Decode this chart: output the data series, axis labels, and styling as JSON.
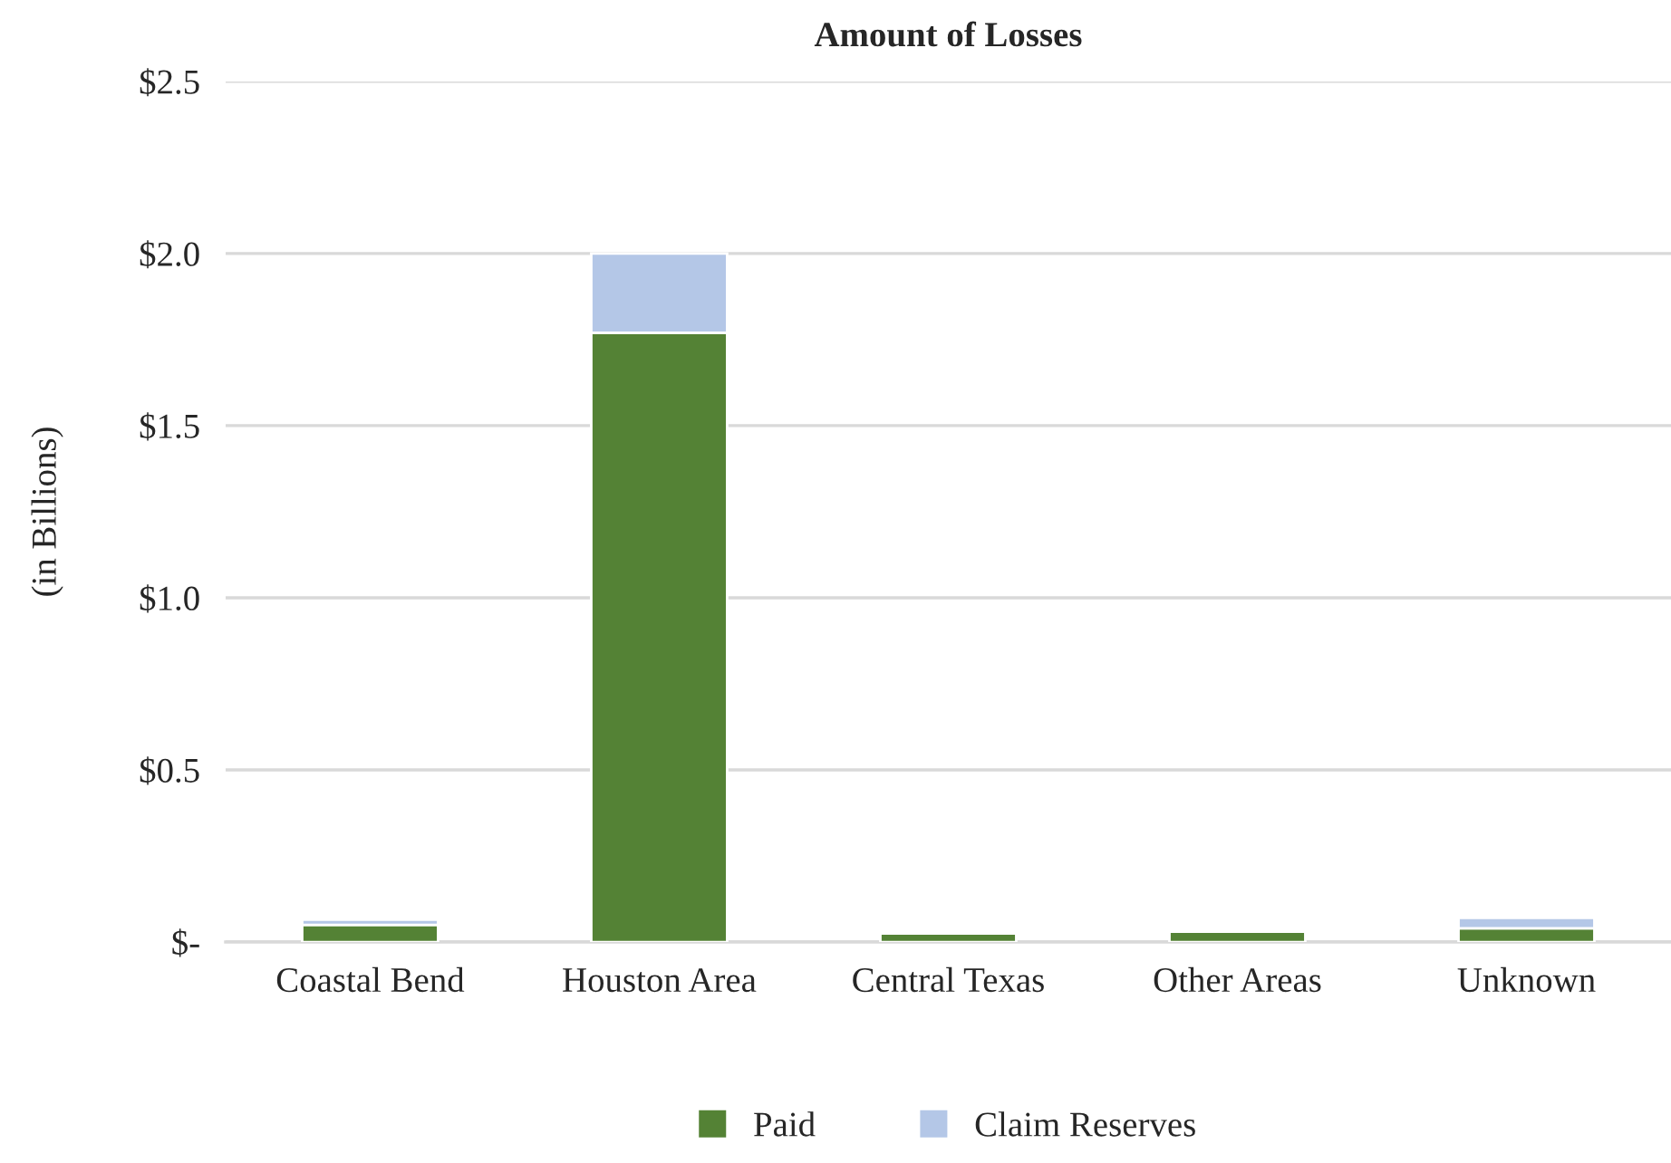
{
  "chart_data": {
    "type": "bar",
    "title": "Amount of Losses",
    "ylabel": "(in Billions)",
    "categories": [
      "Coastal Bend",
      "Houston Area",
      "Central Texas",
      "Other Areas",
      "Unknown"
    ],
    "stacked": true,
    "series": [
      {
        "name": "Paid",
        "color": "#548235",
        "values": [
          0.05,
          1.77,
          0.025,
          0.03,
          0.04
        ]
      },
      {
        "name": "Claim Reserves",
        "color": "#b4c7e7",
        "values": [
          0.015,
          0.23,
          null,
          null,
          0.03
        ]
      }
    ],
    "ylim": [
      0,
      2.5
    ],
    "yticks": [
      {
        "value": 0,
        "label": "$-"
      },
      {
        "value": 0.5,
        "label": "$0.5"
      },
      {
        "value": 1.0,
        "label": "$1.0"
      },
      {
        "value": 1.5,
        "label": "$1.5"
      },
      {
        "value": 2.0,
        "label": "$2.0"
      },
      {
        "value": 2.5,
        "label": "$2.5"
      }
    ],
    "grid": "y",
    "legend": "bottom"
  }
}
